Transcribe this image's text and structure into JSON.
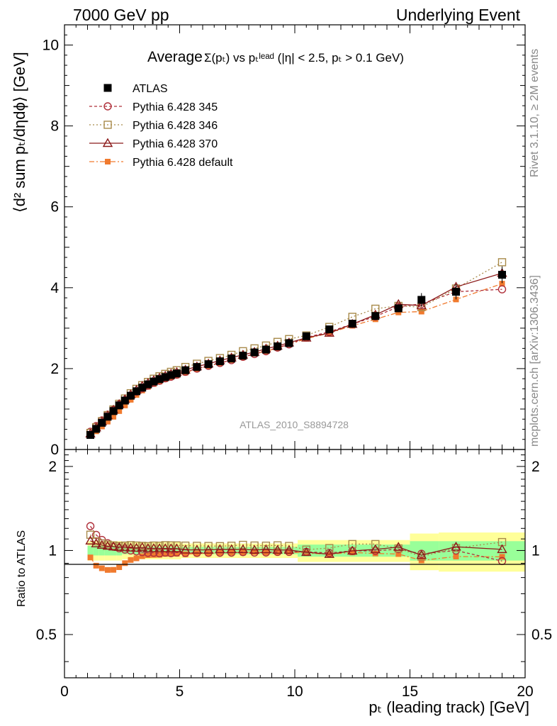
{
  "header": {
    "left": "7000 GeV pp",
    "right": "Underlying Event"
  },
  "side_labels": {
    "rivet": "Rivet 3.1.10, ≥ 2M events",
    "mcplots": "mcplots.cern.ch [arXiv:1306.3436]"
  },
  "chart_data": {
    "type": "scatter",
    "title_main": "Average",
    "title_formula": "Σ(pₜ) vs pₜˡᵉᵃᵈ (|η| < 2.5, pₜ > 0.1 GeV)",
    "watermark": "ATLAS_2010_S8894728",
    "ylabel": "⟨d² sum pₜ/dηdϕ⟩ [GeV]",
    "ratio_ylabel": "Ratio to ATLAS",
    "xlabel": "pₜ (leading track) [GeV]",
    "xlim": [
      0,
      20
    ],
    "ylim": [
      0,
      10.5
    ],
    "ratio_ylim": [
      0.35,
      2.3
    ],
    "x_ticks": [
      "0",
      "5",
      "10",
      "15",
      "20"
    ],
    "y_ticks": [
      "0",
      "2",
      "4",
      "6",
      "8",
      "10"
    ],
    "ratio_y_ticks": [
      "0.5",
      "1",
      "2"
    ],
    "legend_position": "top-left",
    "x": [
      1.125,
      1.375,
      1.625,
      1.875,
      2.125,
      2.375,
      2.625,
      2.875,
      3.125,
      3.375,
      3.625,
      3.875,
      4.125,
      4.375,
      4.625,
      4.875,
      5.25,
      5.75,
      6.25,
      6.75,
      7.25,
      7.75,
      8.25,
      8.75,
      9.25,
      9.75,
      10.5,
      11.5,
      12.5,
      13.5,
      14.5,
      15.5,
      17.0,
      19.0
    ],
    "series": [
      {
        "name": "ATLAS",
        "color": "#000000",
        "marker": "square-filled",
        "values": [
          0.36,
          0.51,
          0.66,
          0.81,
          0.95,
          1.09,
          1.21,
          1.33,
          1.44,
          1.53,
          1.61,
          1.68,
          1.74,
          1.79,
          1.84,
          1.88,
          1.96,
          2.04,
          2.11,
          2.18,
          2.25,
          2.32,
          2.4,
          2.47,
          2.55,
          2.63,
          2.8,
          2.97,
          3.11,
          3.3,
          3.49,
          3.7,
          3.9,
          4.32
        ],
        "band_total": [
          0.08,
          0.08,
          0.08,
          0.08,
          0.08,
          0.08,
          0.07,
          0.07,
          0.07,
          0.07,
          0.07,
          0.07,
          0.07,
          0.07,
          0.07,
          0.07,
          0.06,
          0.06,
          0.06,
          0.06,
          0.06,
          0.06,
          0.06,
          0.06,
          0.06,
          0.06,
          0.09,
          0.09,
          0.09,
          0.09,
          0.09,
          0.15,
          0.16,
          0.16
        ],
        "band_stat": [
          0.04,
          0.04,
          0.04,
          0.04,
          0.04,
          0.04,
          0.03,
          0.03,
          0.03,
          0.03,
          0.03,
          0.03,
          0.03,
          0.03,
          0.03,
          0.03,
          0.03,
          0.03,
          0.03,
          0.03,
          0.03,
          0.03,
          0.03,
          0.03,
          0.03,
          0.03,
          0.05,
          0.05,
          0.05,
          0.05,
          0.05,
          0.08,
          0.08,
          0.08
        ]
      },
      {
        "name": "Pythia 6.428 345",
        "color": "#b0303b",
        "marker": "circle-open",
        "dash": "4,3",
        "values": [
          0.44,
          0.58,
          0.72,
          0.86,
          0.98,
          1.11,
          1.22,
          1.33,
          1.43,
          1.51,
          1.58,
          1.65,
          1.7,
          1.76,
          1.8,
          1.85,
          1.92,
          2.0,
          2.07,
          2.14,
          2.21,
          2.29,
          2.36,
          2.43,
          2.52,
          2.6,
          2.77,
          2.91,
          3.1,
          3.29,
          3.53,
          3.6,
          3.9,
          3.96
        ]
      },
      {
        "name": "Pythia 6.428 346",
        "color": "#a88a4a",
        "marker": "square-open",
        "dash": "2,3",
        "values": [
          0.41,
          0.55,
          0.7,
          0.85,
          0.99,
          1.13,
          1.26,
          1.39,
          1.5,
          1.59,
          1.67,
          1.75,
          1.81,
          1.87,
          1.92,
          1.96,
          2.04,
          2.12,
          2.19,
          2.26,
          2.34,
          2.43,
          2.5,
          2.57,
          2.66,
          2.73,
          2.82,
          3.03,
          3.28,
          3.48,
          3.55,
          3.52,
          3.98,
          4.63
        ]
      },
      {
        "name": "Pythia 6.428 370",
        "color": "#8b1a1a",
        "marker": "triangle-open",
        "dash": "",
        "values": [
          0.39,
          0.54,
          0.69,
          0.84,
          0.98,
          1.12,
          1.24,
          1.36,
          1.47,
          1.57,
          1.64,
          1.71,
          1.77,
          1.82,
          1.87,
          1.91,
          1.97,
          2.05,
          2.12,
          2.2,
          2.27,
          2.34,
          2.41,
          2.49,
          2.56,
          2.64,
          2.76,
          2.88,
          3.1,
          3.33,
          3.59,
          3.56,
          4.02,
          4.36
        ]
      },
      {
        "name": "Pythia 6.428 default",
        "color": "#f07a2e",
        "marker": "square-small-filled",
        "dash": "7,3,2,3",
        "values": [
          0.34,
          0.45,
          0.57,
          0.69,
          0.81,
          0.95,
          1.09,
          1.23,
          1.35,
          1.46,
          1.55,
          1.62,
          1.68,
          1.74,
          1.79,
          1.83,
          1.9,
          1.99,
          2.06,
          2.14,
          2.21,
          2.28,
          2.37,
          2.43,
          2.51,
          2.6,
          2.74,
          2.88,
          3.06,
          3.22,
          3.39,
          3.41,
          3.71,
          4.1
        ]
      }
    ]
  }
}
